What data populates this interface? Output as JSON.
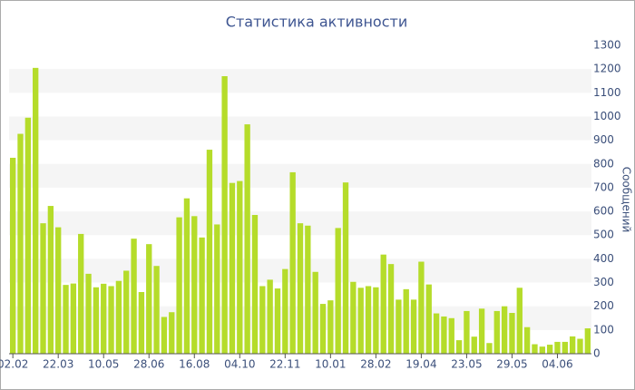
{
  "chart_data": {
    "type": "bar",
    "title": "Статистика активности",
    "y_label": "Сообщений",
    "categories": [
      "02.02",
      null,
      null,
      null,
      null,
      null,
      "22.03",
      null,
      null,
      null,
      null,
      null,
      "10.05",
      null,
      null,
      null,
      null,
      null,
      "28.06",
      null,
      null,
      null,
      null,
      null,
      "16.08",
      null,
      null,
      null,
      null,
      null,
      "04.10",
      null,
      null,
      null,
      null,
      null,
      "22.11",
      null,
      null,
      null,
      null,
      null,
      "10.01",
      null,
      null,
      null,
      null,
      null,
      "28.02",
      null,
      null,
      null,
      null,
      null,
      "19.04",
      null,
      null,
      null,
      null,
      null,
      "23.05",
      null,
      null,
      null,
      null,
      null,
      "29.05",
      null,
      null,
      null,
      null,
      null,
      "04.06",
      null,
      null,
      null,
      null
    ],
    "values": [
      826,
      927,
      995,
      1205,
      550,
      623,
      533,
      290,
      296,
      505,
      337,
      280,
      295,
      285,
      307,
      350,
      485,
      260,
      462,
      370,
      155,
      175,
      575,
      655,
      580,
      490,
      860,
      545,
      1170,
      720,
      728,
      967,
      585,
      285,
      312,
      275,
      357,
      765,
      550,
      540,
      345,
      210,
      225,
      530,
      722,
      303,
      278,
      285,
      280,
      418,
      378,
      228,
      272,
      228,
      388,
      292,
      170,
      157,
      150,
      57,
      180,
      72,
      190,
      45,
      180,
      200,
      172,
      278,
      112,
      40,
      30,
      38,
      50,
      50,
      73,
      63,
      107
    ],
    "color": "#b5dc2a",
    "ylim": [
      0,
      1300
    ],
    "yticks": [
      0,
      100,
      200,
      300,
      400,
      500,
      600,
      700,
      800,
      900,
      1000,
      1100,
      1200,
      1300
    ],
    "grid": true
  }
}
